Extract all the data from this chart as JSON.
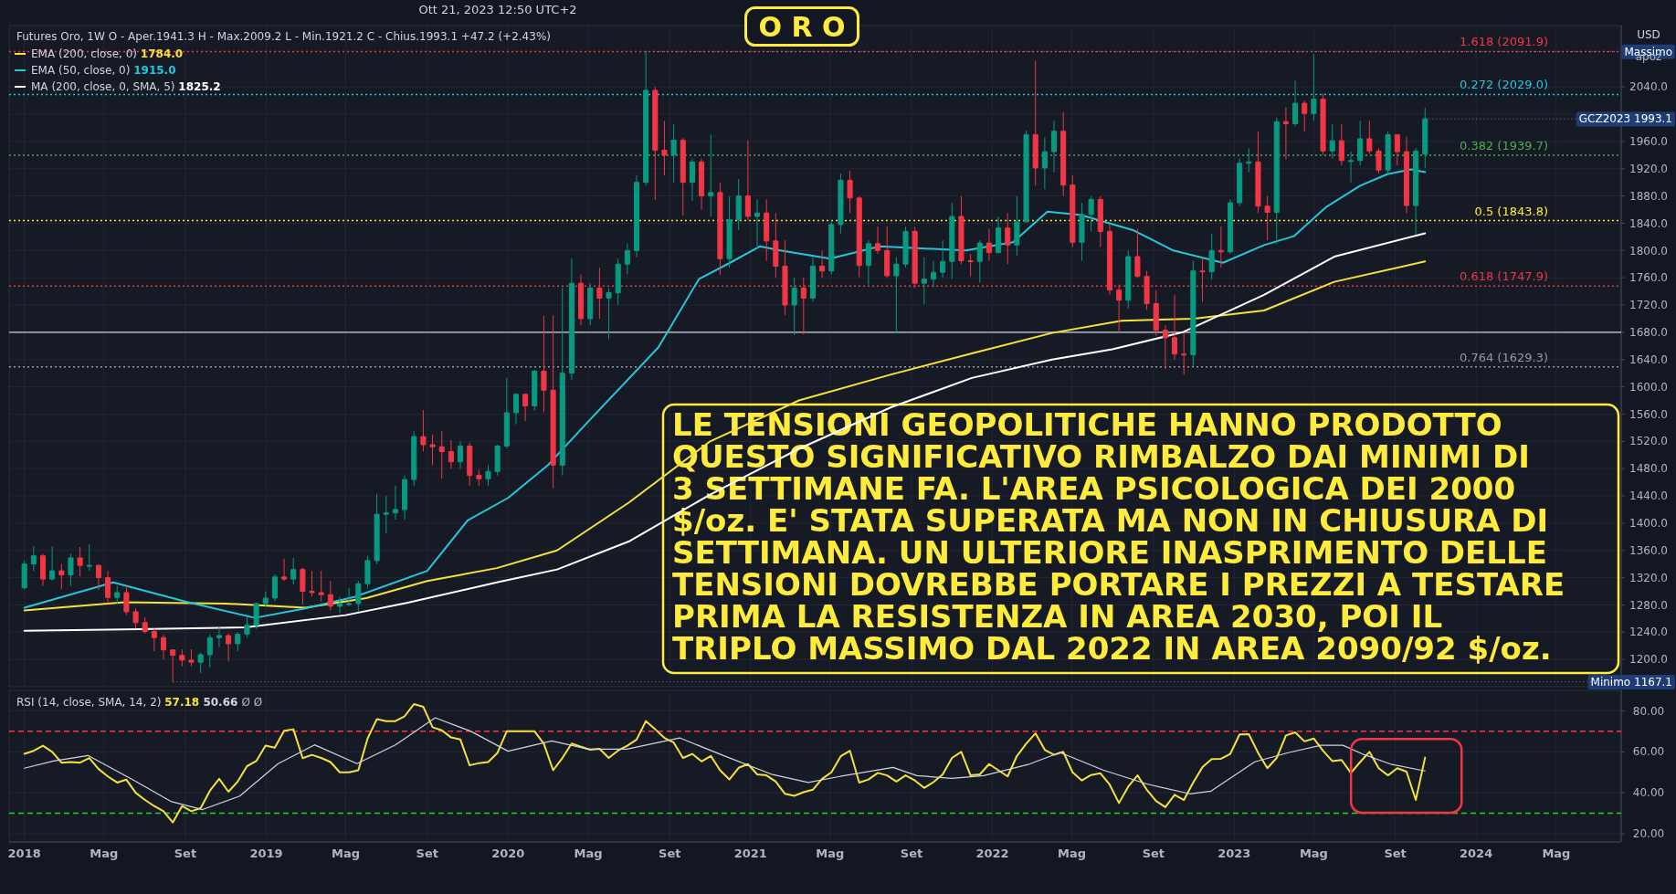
{
  "chart_data": [
    {
      "type": "candlestick",
      "title": "O R O",
      "subtitle": "Futures Oro, 1W  O - Aper.1941.3  H - Max.2009.2  L - Min.1921.2  C - Chius.1993.1  +47.2 (+2.43%)",
      "ylabel": "USD",
      "annotations": [
        "Ott 21, 2023 12:50 UTC+2",
        "apoz",
        "LE TENSIONI GEOPOLITICHE HANNO PRODOTTO\nQUESTO SIGNIFICATIVO RIMBALZO DAI MINIMI DI\n3 SETTIMANE FA. L'AREA PSICOLOGICA DEI 2000\n$/oz. E' STATA SUPERATA MA NON IN CHIUSURA DI\nSETTIMANA. UN ULTERIORE INASPRIMENTO DELLE\nTENSIONI DOVREBBE PORTARE I PREZZI A TESTARE\nPRIMA LA RESISTENZA IN AREA 2030, POI IL\nTRIPLO MASSIMO DAL 2022 IN AREA 2090/92 $/oz.",
        "1784.0",
        "1915.0",
        "1825.2",
        {
          "text": "Massimo",
          "x": "2020-07-27",
          "y": 2091.9
        },
        {
          "text": "GCZ2023 1993.1",
          "x": "2023-10-16",
          "y": 1993.1
        },
        {
          "text": "Minimo 1167.1",
          "x": "2018-08-13",
          "y": 1167.1
        }
      ],
      "x": [
        "2018-01-01",
        "2018-01-15",
        "2018-01-29",
        "2018-02-12",
        "2018-02-26",
        "2018-03-12",
        "2018-03-26",
        "2018-04-09",
        "2018-04-23",
        "2018-05-07",
        "2018-05-21",
        "2018-06-04",
        "2018-06-18",
        "2018-07-02",
        "2018-07-16",
        "2018-07-30",
        "2018-08-13",
        "2018-08-27",
        "2018-09-10",
        "2018-09-24",
        "2018-10-08",
        "2018-10-22",
        "2018-11-05",
        "2018-11-19",
        "2018-12-03",
        "2018-12-17",
        "2018-12-31",
        "2019-01-14",
        "2019-01-28",
        "2019-02-11",
        "2019-02-25",
        "2019-03-11",
        "2019-03-25",
        "2019-04-08",
        "2019-04-22",
        "2019-05-06",
        "2019-05-20",
        "2019-06-03",
        "2019-06-17",
        "2019-07-01",
        "2019-07-15",
        "2019-07-29",
        "2019-08-12",
        "2019-08-26",
        "2019-09-09",
        "2019-09-23",
        "2019-10-07",
        "2019-10-21",
        "2019-11-04",
        "2019-11-18",
        "2019-12-02",
        "2019-12-16",
        "2019-12-30",
        "2020-01-13",
        "2020-01-27",
        "2020-02-10",
        "2020-02-24",
        "2020-03-09",
        "2020-03-23",
        "2020-04-06",
        "2020-04-20",
        "2020-05-04",
        "2020-05-18",
        "2020-06-01",
        "2020-06-15",
        "2020-06-29",
        "2020-07-13",
        "2020-07-27",
        "2020-08-10",
        "2020-08-24",
        "2020-09-07",
        "2020-09-21",
        "2020-10-05",
        "2020-10-19",
        "2020-11-02",
        "2020-11-16",
        "2020-11-30",
        "2020-12-14",
        "2020-12-28",
        "2021-01-11",
        "2021-01-25",
        "2021-02-08",
        "2021-02-22",
        "2021-03-08",
        "2021-03-22",
        "2021-04-05",
        "2021-04-19",
        "2021-05-03",
        "2021-05-17",
        "2021-05-31",
        "2021-06-14",
        "2021-06-28",
        "2021-07-12",
        "2021-07-26",
        "2021-08-09",
        "2021-08-23",
        "2021-09-06",
        "2021-09-20",
        "2021-10-04",
        "2021-10-18",
        "2021-11-01",
        "2021-11-15",
        "2021-11-29",
        "2021-12-13",
        "2021-12-27",
        "2022-01-10",
        "2022-01-24",
        "2022-02-07",
        "2022-02-21",
        "2022-03-07",
        "2022-03-21",
        "2022-04-04",
        "2022-04-18",
        "2022-05-02",
        "2022-05-16",
        "2022-05-30",
        "2022-06-13",
        "2022-06-27",
        "2022-07-11",
        "2022-07-25",
        "2022-08-08",
        "2022-08-22",
        "2022-09-05",
        "2022-09-19",
        "2022-10-03",
        "2022-10-17",
        "2022-10-31",
        "2022-11-14",
        "2022-11-28",
        "2022-12-12",
        "2022-12-26",
        "2023-01-09",
        "2023-01-23",
        "2023-02-06",
        "2023-02-20",
        "2023-03-06",
        "2023-03-20",
        "2023-04-03",
        "2023-04-17",
        "2023-05-01",
        "2023-05-15",
        "2023-05-29",
        "2023-06-12",
        "2023-06-26",
        "2023-07-10",
        "2023-07-24",
        "2023-08-07",
        "2023-08-21",
        "2023-09-04",
        "2023-09-18",
        "2023-10-02",
        "2023-10-16"
      ],
      "ohlc": [
        [
          1305,
          1345,
          1303,
          1340
        ],
        [
          1340,
          1366,
          1330,
          1352
        ],
        [
          1352,
          1355,
          1308,
          1318
        ],
        [
          1318,
          1366,
          1316,
          1330
        ],
        [
          1330,
          1340,
          1303,
          1324
        ],
        [
          1324,
          1355,
          1308,
          1349
        ],
        [
          1349,
          1365,
          1322,
          1338
        ],
        [
          1338,
          1369,
          1330,
          1338
        ],
        [
          1338,
          1340,
          1302,
          1320
        ],
        [
          1320,
          1330,
          1282,
          1291
        ],
        [
          1291,
          1308,
          1282,
          1298
        ],
        [
          1298,
          1310,
          1265,
          1270
        ],
        [
          1270,
          1275,
          1245,
          1254
        ],
        [
          1254,
          1262,
          1238,
          1241
        ],
        [
          1241,
          1245,
          1212,
          1232
        ],
        [
          1232,
          1236,
          1200,
          1214
        ],
        [
          1214,
          1215,
          1167.1,
          1206
        ],
        [
          1206,
          1215,
          1190,
          1199
        ],
        [
          1199,
          1215,
          1190,
          1196
        ],
        [
          1196,
          1210,
          1180,
          1207
        ],
        [
          1207,
          1237,
          1188,
          1232
        ],
        [
          1232,
          1248,
          1218,
          1235
        ],
        [
          1235,
          1238,
          1197,
          1223
        ],
        [
          1223,
          1240,
          1212,
          1237
        ],
        [
          1237,
          1263,
          1232,
          1250
        ],
        [
          1250,
          1283,
          1245,
          1282
        ],
        [
          1282,
          1300,
          1278,
          1290
        ],
        [
          1290,
          1325,
          1285,
          1321
        ],
        [
          1321,
          1348,
          1315,
          1318
        ],
        [
          1318,
          1349,
          1310,
          1332
        ],
        [
          1332,
          1335,
          1281,
          1300
        ],
        [
          1300,
          1330,
          1292,
          1298
        ],
        [
          1298,
          1330,
          1285,
          1295
        ],
        [
          1295,
          1315,
          1272,
          1278
        ],
        [
          1278,
          1292,
          1268,
          1282
        ],
        [
          1282,
          1305,
          1278,
          1282
        ],
        [
          1282,
          1315,
          1270,
          1311
        ],
        [
          1311,
          1352,
          1305,
          1345
        ],
        [
          1345,
          1443,
          1340,
          1413
        ],
        [
          1413,
          1440,
          1385,
          1415
        ],
        [
          1415,
          1455,
          1405,
          1420
        ],
        [
          1420,
          1470,
          1405,
          1464
        ],
        [
          1464,
          1535,
          1455,
          1527
        ],
        [
          1527,
          1566,
          1505,
          1515
        ],
        [
          1515,
          1530,
          1485,
          1512
        ],
        [
          1512,
          1535,
          1465,
          1505
        ],
        [
          1505,
          1522,
          1480,
          1490
        ],
        [
          1490,
          1520,
          1480,
          1513
        ],
        [
          1513,
          1518,
          1455,
          1470
        ],
        [
          1470,
          1478,
          1455,
          1465
        ],
        [
          1465,
          1485,
          1455,
          1476
        ],
        [
          1476,
          1515,
          1470,
          1513
        ],
        [
          1513,
          1613,
          1510,
          1562
        ],
        [
          1562,
          1590,
          1545,
          1589
        ],
        [
          1589,
          1590,
          1550,
          1572
        ],
        [
          1572,
          1625,
          1565,
          1623
        ],
        [
          1623,
          1704,
          1563,
          1595
        ],
        [
          1595,
          1705,
          1451,
          1485
        ],
        [
          1485,
          1745,
          1470,
          1620
        ],
        [
          1620,
          1788,
          1610,
          1752
        ],
        [
          1752,
          1765,
          1690,
          1700
        ],
        [
          1700,
          1752,
          1690,
          1745
        ],
        [
          1745,
          1775,
          1700,
          1730
        ],
        [
          1730,
          1745,
          1670,
          1738
        ],
        [
          1738,
          1788,
          1720,
          1780
        ],
        [
          1780,
          1810,
          1765,
          1800
        ],
        [
          1800,
          1910,
          1790,
          1900
        ],
        [
          1900,
          2091.9,
          1895,
          2035
        ],
        [
          2035,
          2040,
          1874,
          1947
        ],
        [
          1947,
          1990,
          1910,
          1940
        ],
        [
          1940,
          1985,
          1900,
          1962
        ],
        [
          1962,
          1965,
          1851,
          1900
        ],
        [
          1900,
          1935,
          1873,
          1930
        ],
        [
          1930,
          1935,
          1860,
          1880
        ],
        [
          1880,
          1970,
          1850,
          1885
        ],
        [
          1885,
          1900,
          1764,
          1788
        ],
        [
          1788,
          1880,
          1775,
          1845
        ],
        [
          1845,
          1905,
          1830,
          1880
        ],
        [
          1880,
          1962,
          1845,
          1850
        ],
        [
          1850,
          1875,
          1802,
          1855
        ],
        [
          1855,
          1875,
          1785,
          1814
        ],
        [
          1814,
          1855,
          1760,
          1777
        ],
        [
          1777,
          1815,
          1705,
          1720
        ],
        [
          1720,
          1760,
          1676,
          1745
        ],
        [
          1745,
          1760,
          1677,
          1730
        ],
        [
          1730,
          1790,
          1725,
          1777
        ],
        [
          1777,
          1800,
          1760,
          1770
        ],
        [
          1770,
          1845,
          1765,
          1838
        ],
        [
          1838,
          1913,
          1825,
          1903
        ],
        [
          1903,
          1917,
          1855,
          1877
        ],
        [
          1877,
          1880,
          1761,
          1778
        ],
        [
          1778,
          1815,
          1750,
          1810
        ],
        [
          1810,
          1835,
          1795,
          1800
        ],
        [
          1800,
          1835,
          1760,
          1763
        ],
        [
          1763,
          1790,
          1678,
          1780
        ],
        [
          1780,
          1835,
          1775,
          1828
        ],
        [
          1828,
          1835,
          1745,
          1752
        ],
        [
          1752,
          1790,
          1721,
          1758
        ],
        [
          1758,
          1785,
          1746,
          1768
        ],
        [
          1768,
          1815,
          1760,
          1784
        ],
        [
          1784,
          1870,
          1758,
          1850
        ],
        [
          1850,
          1880,
          1780,
          1785
        ],
        [
          1785,
          1795,
          1762,
          1784
        ],
        [
          1784,
          1815,
          1753,
          1811
        ],
        [
          1811,
          1832,
          1785,
          1797
        ],
        [
          1797,
          1850,
          1796,
          1833
        ],
        [
          1833,
          1855,
          1780,
          1808
        ],
        [
          1808,
          1880,
          1792,
          1842
        ],
        [
          1842,
          1976,
          1842,
          1970
        ],
        [
          1970,
          2078.8,
          1895,
          1921
        ],
        [
          1921,
          1966,
          1890,
          1945
        ],
        [
          1945,
          1990,
          1915,
          1975
        ],
        [
          1975,
          2003,
          1880,
          1896
        ],
        [
          1896,
          1910,
          1805,
          1812
        ],
        [
          1812,
          1870,
          1785,
          1853
        ],
        [
          1853,
          1880,
          1828,
          1875
        ],
        [
          1875,
          1880,
          1805,
          1828
        ],
        [
          1828,
          1838,
          1735,
          1742
        ],
        [
          1742,
          1750,
          1680,
          1727
        ],
        [
          1727,
          1800,
          1715,
          1791
        ],
        [
          1791,
          1832,
          1760,
          1762
        ],
        [
          1762,
          1770,
          1713,
          1722
        ],
        [
          1722,
          1742,
          1675,
          1683
        ],
        [
          1683,
          1690,
          1626,
          1672
        ],
        [
          1672,
          1735,
          1640,
          1648
        ],
        [
          1648,
          1680,
          1618,
          1647
        ],
        [
          1647,
          1785,
          1630,
          1770
        ],
        [
          1770,
          1790,
          1725,
          1769
        ],
        [
          1769,
          1825,
          1757,
          1800
        ],
        [
          1800,
          1835,
          1775,
          1798
        ],
        [
          1798,
          1875,
          1795,
          1870
        ],
        [
          1870,
          1935,
          1865,
          1928
        ],
        [
          1928,
          1950,
          1915,
          1930
        ],
        [
          1930,
          1975,
          1855,
          1865
        ],
        [
          1865,
          1880,
          1815,
          1856
        ],
        [
          1856,
          1995,
          1810,
          1989
        ],
        [
          1989,
          2010,
          1934,
          1986
        ],
        [
          1986,
          2049,
          1982,
          2016
        ],
        [
          2016,
          2020,
          1975,
          2001
        ],
        [
          2001,
          2088,
          1990,
          2022
        ],
        [
          2022,
          2030,
          1940,
          1946
        ],
        [
          1946,
          1985,
          1935,
          1961
        ],
        [
          1961,
          1985,
          1925,
          1932
        ],
        [
          1932,
          1945,
          1900,
          1932
        ],
        [
          1932,
          1990,
          1925,
          1964
        ],
        [
          1964,
          1990,
          1942,
          1946
        ],
        [
          1946,
          1950,
          1913,
          1918
        ],
        [
          1918,
          1975,
          1910,
          1970
        ],
        [
          1970,
          1970,
          1925,
          1945
        ],
        [
          1945,
          1967,
          1855,
          1866
        ],
        [
          1866,
          1950,
          1823,
          1945.9
        ],
        [
          1941.3,
          2009.2,
          1921.2,
          1993.1
        ]
      ],
      "series": [
        {
          "type": "line",
          "name": "EMA (200, close, 0)",
          "color": "#f7e13a",
          "x": [
            "2018-01-01",
            "2018-06-01",
            "2018-11-01",
            "2019-03-01",
            "2019-06-01",
            "2019-09-01",
            "2019-12-15",
            "2020-03-15",
            "2020-07-01",
            "2020-11-01",
            "2021-03-15",
            "2021-08-01",
            "2021-12-01",
            "2022-04-01",
            "2022-07-15",
            "2022-11-01",
            "2023-02-15",
            "2023-06-01",
            "2023-10-16"
          ],
          "values": [
            1272,
            1284,
            1282,
            1276,
            1290,
            1315,
            1334,
            1360,
            1430,
            1520,
            1580,
            1618,
            1649,
            1679,
            1697,
            1700,
            1712,
            1754,
            1784.0
          ]
        },
        {
          "type": "line",
          "name": "EMA (50, close, 0)",
          "color": "#26c6da",
          "x": [
            "2018-01-01",
            "2018-05-15",
            "2018-09-01",
            "2018-12-15",
            "2019-03-01",
            "2019-05-15",
            "2019-09-01",
            "2019-11-01",
            "2020-01-01",
            "2020-03-01",
            "2020-05-01",
            "2020-08-15",
            "2020-10-15",
            "2020-12-01",
            "2021-01-15",
            "2021-02-15",
            "2021-05-01",
            "2021-07-15",
            "2021-11-22",
            "2022-02-01",
            "2022-03-25",
            "2022-05-15",
            "2022-08-01",
            "2022-10-01",
            "2022-12-15",
            "2023-02-15",
            "2023-04-01",
            "2023-05-20",
            "2023-07-10",
            "2023-08-20",
            "2023-09-25",
            "2023-10-16"
          ],
          "values": [
            1276,
            1313,
            1285,
            1261,
            1275,
            1292,
            1330,
            1404,
            1437,
            1485,
            1549,
            1658,
            1758,
            1782,
            1806,
            1800,
            1788,
            1806,
            1800,
            1812,
            1857,
            1852,
            1830,
            1800,
            1782,
            1808,
            1821,
            1864,
            1895,
            1912,
            1919,
            1915.0
          ]
        },
        {
          "type": "line",
          "name": "MA (200, close, 0, SMA, 5)",
          "color": "#ffffff",
          "x": [
            "2018-01-01",
            "2018-06-01",
            "2018-12-01",
            "2019-05-01",
            "2019-08-01",
            "2019-12-15",
            "2020-03-15",
            "2020-07-01",
            "2020-11-01",
            "2021-03-15",
            "2021-08-01",
            "2021-12-01",
            "2022-04-01",
            "2022-07-01",
            "2022-10-15",
            "2023-02-15",
            "2023-06-01",
            "2023-10-16"
          ],
          "values": [
            1242,
            1244,
            1247,
            1265,
            1283,
            1313,
            1332,
            1373,
            1442,
            1509,
            1570,
            1613,
            1640,
            1655,
            1680,
            1735,
            1791,
            1825.2
          ]
        }
      ],
      "ref_lines": [
        {
          "axis": "y",
          "value": 2091.9,
          "label": "1.618 (2091.9)",
          "color": "#f23645",
          "line_style": "dotted"
        },
        {
          "axis": "y",
          "value": 2029.0,
          "label": "0.272 (2029.0)",
          "color": "#26c6da",
          "line_style": "dotted"
        },
        {
          "axis": "y",
          "value": 1939.7,
          "label": "0.382 (1939.7)",
          "color": "#4caf50",
          "line_style": "dotted"
        },
        {
          "axis": "y",
          "value": 1843.8,
          "label": "0.5 (1843.8)",
          "color": "#ffeb3b",
          "line_style": "dotted"
        },
        {
          "axis": "y",
          "value": 1747.9,
          "label": "0.618 (1747.9)",
          "color": "#f23645",
          "line_style": "dotted"
        },
        {
          "axis": "y",
          "value": 1629.3,
          "label": "0.764 (1629.3)",
          "color": "#9598a1",
          "line_style": "dotted"
        },
        {
          "axis": "y",
          "value": 1680,
          "color": "#d1d4dc",
          "line_style": "solid"
        }
      ],
      "xlim": [
        "2017-12-09",
        "2024-08-07"
      ],
      "xticks": [
        "2018-01-01",
        "2018-05-01",
        "2018-09-01",
        "2019-01-01",
        "2019-05-01",
        "2019-09-01",
        "2020-01-01",
        "2020-05-01",
        "2020-09-01",
        "2021-01-01",
        "2021-05-01",
        "2021-09-01",
        "2022-01-01",
        "2022-05-01",
        "2022-09-01",
        "2023-01-01",
        "2023-05-01",
        "2023-09-01",
        "2024-01-01",
        "2024-05-01"
      ],
      "ylim": [
        1160,
        2130
      ],
      "yticks": [
        {
          "value": 1200,
          "label": "1200.0"
        },
        {
          "value": 1240,
          "label": "1240.0"
        },
        {
          "value": 1280,
          "label": "1280.0"
        },
        {
          "value": 1320,
          "label": "1320.0"
        },
        {
          "value": 1360,
          "label": "1360.0"
        },
        {
          "value": 1400,
          "label": "1400.0"
        },
        {
          "value": 1440,
          "label": "1440.0"
        },
        {
          "value": 1480,
          "label": "1480.0"
        },
        {
          "value": 1520,
          "label": "1520.0"
        },
        {
          "value": 1560,
          "label": "1560.0"
        },
        {
          "value": 1600,
          "label": "1600.0"
        },
        {
          "value": 1640,
          "label": "1640.0"
        },
        {
          "value": 1680,
          "label": "1680.0"
        },
        {
          "value": 1720,
          "label": "1720.0"
        },
        {
          "value": 1760,
          "label": "1760.0"
        },
        {
          "value": 1800,
          "label": "1800.0"
        },
        {
          "value": 1840,
          "label": "1840.0"
        },
        {
          "value": 1880,
          "label": "1880.0"
        },
        {
          "value": 1920,
          "label": "1920.0"
        },
        {
          "value": 1960,
          "label": "1960.0"
        },
        {
          "value": 2000,
          "label": null
        },
        {
          "value": 2040,
          "label": "2040.0"
        }
      ],
      "tick_labels": "y",
      "grid": true,
      "legend": "top left"
    },
    {
      "type": "line",
      "title": "RSI (14, close, SMA, 14, 2)",
      "annotations": [
        "57.18",
        "50.66",
        "Ø Ø"
      ],
      "series": [
        {
          "color": "#f5e13b",
          "x": [
            "2018-01-01",
            "2018-01-15",
            "2018-01-29",
            "2018-02-12",
            "2018-02-26",
            "2018-03-12",
            "2018-03-26",
            "2018-04-09",
            "2018-04-23",
            "2018-05-07",
            "2018-05-21",
            "2018-06-04",
            "2018-06-18",
            "2018-07-02",
            "2018-07-16",
            "2018-07-30",
            "2018-08-13",
            "2018-08-27",
            "2018-09-10",
            "2018-09-24",
            "2018-10-08",
            "2018-10-22",
            "2018-11-05",
            "2018-11-19",
            "2018-12-03",
            "2018-12-17",
            "2018-12-31",
            "2019-01-14",
            "2019-01-28",
            "2019-02-11",
            "2019-02-25",
            "2019-03-11",
            "2019-03-25",
            "2019-04-08",
            "2019-04-22",
            "2019-05-06",
            "2019-05-20",
            "2019-06-03",
            "2019-06-17",
            "2019-07-01",
            "2019-07-15",
            "2019-07-29",
            "2019-08-12",
            "2019-08-26",
            "2019-09-09",
            "2019-09-23",
            "2019-10-07",
            "2019-10-21",
            "2019-11-04",
            "2019-11-18",
            "2019-12-02",
            "2019-12-16",
            "2019-12-30",
            "2020-01-13",
            "2020-01-27",
            "2020-02-10",
            "2020-02-24",
            "2020-03-09",
            "2020-03-23",
            "2020-04-06",
            "2020-04-20",
            "2020-05-04",
            "2020-05-18",
            "2020-06-01",
            "2020-06-15",
            "2020-06-29",
            "2020-07-13",
            "2020-07-27",
            "2020-08-10",
            "2020-08-24",
            "2020-09-07",
            "2020-09-21",
            "2020-10-05",
            "2020-10-19",
            "2020-11-02",
            "2020-11-16",
            "2020-11-30",
            "2020-12-14",
            "2020-12-28",
            "2021-01-11",
            "2021-01-25",
            "2021-02-08",
            "2021-02-22",
            "2021-03-08",
            "2021-03-22",
            "2021-04-05",
            "2021-04-19",
            "2021-05-03",
            "2021-05-17",
            "2021-05-31",
            "2021-06-14",
            "2021-06-28",
            "2021-07-12",
            "2021-07-26",
            "2021-08-09",
            "2021-08-23",
            "2021-09-06",
            "2021-09-20",
            "2021-10-04",
            "2021-10-18",
            "2021-11-01",
            "2021-11-15",
            "2021-11-29",
            "2021-12-13",
            "2021-12-27",
            "2022-01-10",
            "2022-01-24",
            "2022-02-07",
            "2022-02-21",
            "2022-03-07",
            "2022-03-21",
            "2022-04-04",
            "2022-04-18",
            "2022-05-02",
            "2022-05-16",
            "2022-05-30",
            "2022-06-13",
            "2022-06-27",
            "2022-07-11",
            "2022-07-25",
            "2022-08-08",
            "2022-08-22",
            "2022-09-05",
            "2022-09-19",
            "2022-10-03",
            "2022-10-17",
            "2022-10-31",
            "2022-11-14",
            "2022-11-28",
            "2022-12-12",
            "2022-12-26",
            "2023-01-09",
            "2023-01-23",
            "2023-02-06",
            "2023-02-20",
            "2023-03-06",
            "2023-03-20",
            "2023-04-03",
            "2023-04-17",
            "2023-05-01",
            "2023-05-15",
            "2023-05-29",
            "2023-06-12",
            "2023-06-26",
            "2023-07-10",
            "2023-07-24",
            "2023-08-07",
            "2023-08-21",
            "2023-09-04",
            "2023-09-18",
            "2023-10-02",
            "2023-10-16"
          ],
          "values": [
            59,
            60.5,
            63,
            60,
            54.7,
            55,
            54.7,
            57,
            51.6,
            48,
            45,
            46.4,
            40,
            36.5,
            33.5,
            31,
            25.5,
            33.5,
            31,
            32.5,
            41,
            46.8,
            40.5,
            45.5,
            53,
            55.5,
            63,
            62,
            70.3,
            71,
            56.9,
            58.5,
            57,
            55,
            50,
            50,
            51,
            66.5,
            76,
            75,
            75,
            77.4,
            83.3,
            82,
            72,
            70.5,
            67,
            66,
            53.4,
            54.5,
            55,
            59.5,
            70,
            70,
            70,
            70,
            64,
            51,
            57,
            64,
            62.5,
            61,
            61.5,
            57,
            60.6,
            63,
            66,
            75,
            71,
            66.8,
            64.5,
            57,
            59,
            55.3,
            58,
            51,
            46.5,
            52.2,
            54,
            49,
            48.5,
            45.5,
            39.5,
            38.5,
            40.3,
            41.5,
            46.8,
            50,
            57.8,
            60.5,
            45,
            46.5,
            49.7,
            48.5,
            45.5,
            48.5,
            46,
            42.4,
            45.2,
            49,
            57,
            60,
            48.5,
            49,
            54,
            51,
            48,
            58,
            64,
            69,
            61,
            58.5,
            60,
            50,
            46,
            48.7,
            49.5,
            44,
            35,
            43,
            48.5,
            41.5,
            36,
            33,
            39,
            36.5,
            45,
            52.5,
            56.5,
            56.6,
            59,
            68.5,
            68.6,
            59.5,
            52,
            57,
            68,
            69.5,
            65.1,
            66.5,
            60.5,
            55.5,
            56,
            49.7,
            55,
            60,
            52,
            48.5,
            52,
            50.3,
            36.5,
            57.18
          ]
        },
        {
          "color": "#d1d4dc",
          "x": [
            "2018-01-01",
            "2018-02-14",
            "2018-04-07",
            "2018-06-14",
            "2018-08-10",
            "2018-09-27",
            "2018-11-22",
            "2019-01-19",
            "2019-03-15",
            "2019-05-18",
            "2019-07-15",
            "2019-09-13",
            "2019-11-06",
            "2020-01-01",
            "2020-03-07",
            "2020-05-01",
            "2020-06-28",
            "2020-09-16",
            "2020-11-21",
            "2021-02-03",
            "2021-03-29",
            "2021-05-16",
            "2021-08-04",
            "2021-09-09",
            "2021-11-01",
            "2021-12-19",
            "2022-02-24",
            "2022-04-13",
            "2022-06-17",
            "2022-08-22",
            "2022-10-26",
            "2022-11-27",
            "2023-02-01",
            "2023-03-25",
            "2023-05-12",
            "2023-06-14",
            "2023-07-16",
            "2023-08-27",
            "2023-10-16"
          ],
          "values": [
            52,
            55.5,
            58.2,
            46.3,
            35.8,
            31.8,
            38.4,
            54.2,
            63.4,
            54.2,
            63.4,
            76.6,
            70,
            60.3,
            65.3,
            61.3,
            61.3,
            66.8,
            58.2,
            48.9,
            45,
            48,
            52.4,
            48.4,
            47,
            48.4,
            53.8,
            59.7,
            51.1,
            44.3,
            39.5,
            40.8,
            55.1,
            59.7,
            63.2,
            63.2,
            58.6,
            53.8,
            50.66
          ]
        }
      ],
      "ref_lines": [
        {
          "axis": "y",
          "value": 70,
          "color": "#f23645",
          "line_style": "dashed"
        },
        {
          "axis": "y",
          "value": 30,
          "color": "#22d32b",
          "line_style": "dashed"
        }
      ],
      "xlim": [
        "2017-12-09",
        "2024-08-07"
      ],
      "xticks": [
        {
          "value": "2018-01-01",
          "label": "2018"
        },
        {
          "value": "2018-05-01",
          "label": "Mag"
        },
        {
          "value": "2018-09-01",
          "label": "Set"
        },
        {
          "value": "2019-01-01",
          "label": "2019"
        },
        {
          "value": "2019-05-01",
          "label": "Mag"
        },
        {
          "value": "2019-09-01",
          "label": "Set"
        },
        {
          "value": "2020-01-01",
          "label": "2020"
        },
        {
          "value": "2020-05-01",
          "label": "Mag"
        },
        {
          "value": "2020-09-01",
          "label": "Set"
        },
        {
          "value": "2021-01-01",
          "label": "2021"
        },
        {
          "value": "2021-05-01",
          "label": "Mag"
        },
        {
          "value": "2021-09-01",
          "label": "Set"
        },
        {
          "value": "2022-01-01",
          "label": "2022"
        },
        {
          "value": "2022-05-01",
          "label": "Mag"
        },
        {
          "value": "2022-09-01",
          "label": "Set"
        },
        {
          "value": "2023-01-01",
          "label": "2023"
        },
        {
          "value": "2023-05-01",
          "label": "Mag"
        },
        {
          "value": "2023-09-01",
          "label": "Set"
        },
        {
          "value": "2024-01-01",
          "label": "2024"
        },
        {
          "value": "2024-05-01",
          "label": "Mag"
        }
      ],
      "ylim": [
        16,
        90
      ],
      "yticks": [
        {
          "value": 20,
          "label": "20.00"
        },
        {
          "value": 40,
          "label": "40.00"
        },
        {
          "value": 60,
          "label": "60.00"
        },
        {
          "value": 80,
          "label": "80.00"
        }
      ],
      "grid": true
    }
  ]
}
